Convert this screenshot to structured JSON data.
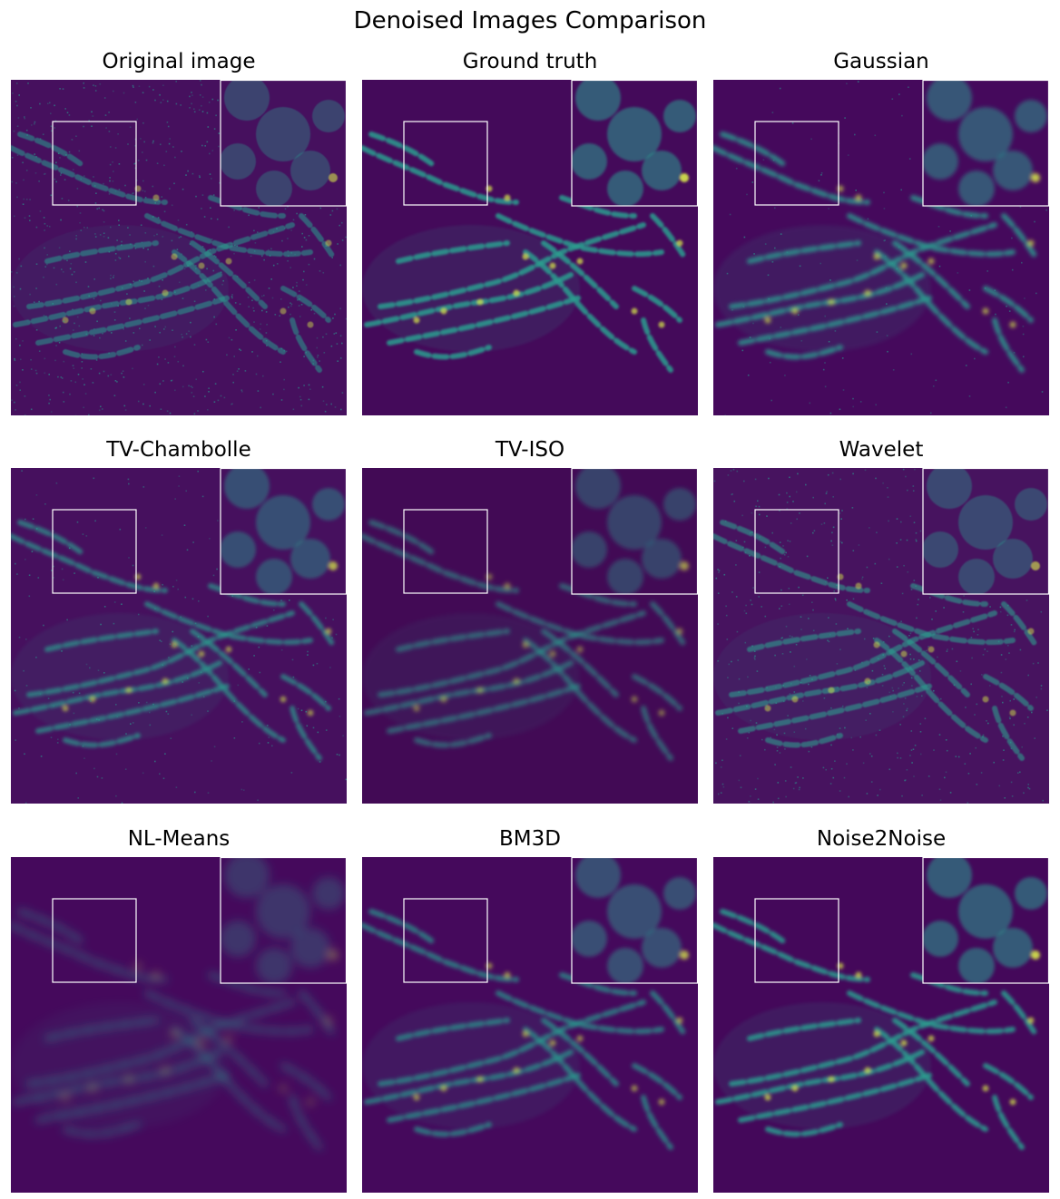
{
  "figure": {
    "title": "Denoised Images Comparison",
    "panels": [
      {
        "title": "Original image",
        "method": "original"
      },
      {
        "title": "Ground truth",
        "method": "ground_truth"
      },
      {
        "title": "Gaussian",
        "method": "gaussian"
      },
      {
        "title": "TV-Chambolle",
        "method": "tv_chambolle"
      },
      {
        "title": "TV-ISO",
        "method": "tv_iso"
      },
      {
        "title": "Wavelet",
        "method": "wavelet"
      },
      {
        "title": "NL-Means",
        "method": "nl_means"
      },
      {
        "title": "BM3D",
        "method": "bm3d"
      },
      {
        "title": "Noise2Noise",
        "method": "noise2noise"
      }
    ],
    "colormap": "viridis",
    "background_color": "#44085a",
    "signal_color": "#2a9d8f",
    "highlight_color": "#d7e84a",
    "roi_box_color": "#ffffff"
  }
}
